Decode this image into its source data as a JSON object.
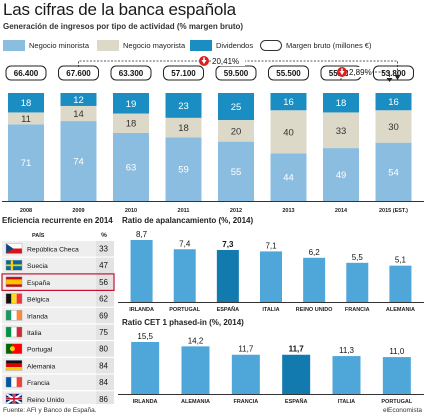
{
  "header": {
    "title": "Las cifras de la banca española",
    "subtitle": "Generación de ingresos por tipo de actividad (% margen bruto)"
  },
  "legend": {
    "items": [
      {
        "label": "Negocio minorista",
        "color": "#8bbde0"
      },
      {
        "label": "Negocio mayorista",
        "color": "#ddd9c8"
      },
      {
        "label": "Dividendos",
        "color": "#1a8ec2"
      },
      {
        "label": "Margen bruto (millones €)",
        "color": "#ffffff"
      }
    ]
  },
  "chart_data": [
    {
      "type": "bar",
      "stacked": true,
      "categories": [
        "2008",
        "2009",
        "2010",
        "2011",
        "2012",
        "2013",
        "2014",
        "2015 (EST.)"
      ],
      "series": [
        {
          "name": "Negocio minorista",
          "values": [
            71,
            74,
            63,
            59,
            55,
            44,
            49,
            54
          ],
          "color": "#8bbde0"
        },
        {
          "name": "Negocio mayorista",
          "values": [
            11,
            14,
            18,
            18,
            20,
            40,
            33,
            30
          ],
          "color": "#ddd9c8"
        },
        {
          "name": "Dividendos",
          "values": [
            18,
            12,
            19,
            23,
            25,
            16,
            18,
            16
          ],
          "color": "#1a8ec2"
        }
      ],
      "margen_bruto": [
        "66.400",
        "67.600",
        "63.300",
        "57.100",
        "59.500",
        "55.500",
        "55.400",
        "53.800"
      ],
      "annotations": [
        {
          "from": "2009",
          "to": "2015 (EST.)",
          "label": "20,41%",
          "direction": "down"
        },
        {
          "from": "2014",
          "to": "2015 (EST.)",
          "label": "2,89%",
          "direction": "down"
        }
      ]
    },
    {
      "type": "table",
      "title": "Eficiencia recurrente en 2014",
      "columns": [
        "PAÍS",
        "%"
      ],
      "rows": [
        {
          "country": "República Checa",
          "value": "33",
          "flag": "cz"
        },
        {
          "country": "Suecia",
          "value": "47",
          "flag": "se"
        },
        {
          "country": "España",
          "value": "56",
          "flag": "es",
          "highlight": true
        },
        {
          "country": "Bélgica",
          "value": "62",
          "flag": "be"
        },
        {
          "country": "Irlanda",
          "value": "69",
          "flag": "ie"
        },
        {
          "country": "Italia",
          "value": "75",
          "flag": "it"
        },
        {
          "country": "Portugal",
          "value": "80",
          "flag": "pt"
        },
        {
          "country": "Alemania",
          "value": "84",
          "flag": "de"
        },
        {
          "country": "Francia",
          "value": "84",
          "flag": "fr"
        },
        {
          "country": "Reino Unido",
          "value": "86",
          "flag": "uk"
        }
      ]
    },
    {
      "type": "bar",
      "title": "Ratio de apalancamiento (%, 2014)",
      "categories": [
        "IRLANDA",
        "PORTUGAL",
        "ESPAÑA",
        "ITALIA",
        "REINO UNIDO",
        "FRANCIA",
        "ALEMANIA"
      ],
      "values": [
        8.7,
        7.4,
        7.3,
        7.1,
        6.2,
        5.5,
        5.1
      ],
      "labels": [
        "8,7",
        "7,4",
        "7,3",
        "7,1",
        "6,2",
        "5,5",
        "5,1"
      ],
      "highlight": "ESPAÑA",
      "color": "#4fa6d9",
      "highlight_color": "#137ab0"
    },
    {
      "type": "bar",
      "title": "Ratio CET 1 phased-in (%, 2014)",
      "categories": [
        "IRLANDA",
        "ALEMANIA",
        "FRANCIA",
        "ESPAÑA",
        "ITALIA",
        "PORTUGAL"
      ],
      "values": [
        15.5,
        14.2,
        11.7,
        11.7,
        11.3,
        11.0
      ],
      "labels": [
        "15,5",
        "14,2",
        "11,7",
        "11,7",
        "11,3",
        "11,0"
      ],
      "highlight": "ESPAÑA",
      "color": "#4fa6d9",
      "highlight_color": "#137ab0"
    }
  ],
  "footer": {
    "source": "Fuente: AFI y Banco de España.",
    "brand": "elEconomista"
  }
}
